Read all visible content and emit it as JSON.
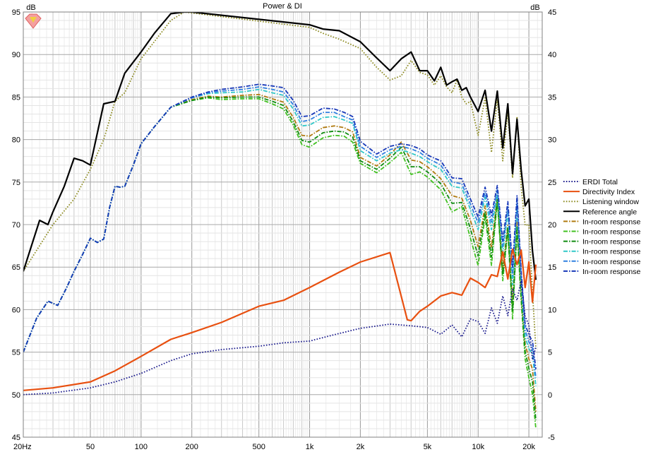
{
  "chart_data": {
    "type": "line",
    "title": "Power & DI",
    "x_scale": "log",
    "xlim": [
      20,
      24000
    ],
    "ylim_left": [
      45,
      95
    ],
    "ylim_right": [
      -5,
      45
    ],
    "left_axis_unit": "dB",
    "right_axis_unit": "dB",
    "grid": true,
    "legend_position": "right",
    "y_ticks_left": [
      95,
      90,
      85,
      80,
      75,
      70,
      65,
      60,
      55,
      50,
      45
    ],
    "y_ticks_right": [
      45,
      40,
      35,
      30,
      25,
      20,
      15,
      10,
      5,
      0,
      -5
    ],
    "x_tick_labels": [
      {
        "value": 20,
        "label": "20Hz"
      },
      {
        "value": 50,
        "label": "50"
      },
      {
        "value": 100,
        "label": "100"
      },
      {
        "value": 200,
        "label": "200"
      },
      {
        "value": 500,
        "label": "500"
      },
      {
        "value": 1000,
        "label": "1k"
      },
      {
        "value": 2000,
        "label": "2k"
      },
      {
        "value": 5000,
        "label": "5k"
      },
      {
        "value": 10000,
        "label": "10k"
      },
      {
        "value": 20000,
        "label": "20k"
      }
    ],
    "series": [
      {
        "name": "ERDI Total",
        "color": "#1a1a8c",
        "dash": "dot",
        "axis": "right",
        "x": [
          20,
          30,
          50,
          70,
          100,
          150,
          200,
          300,
          500,
          700,
          1000,
          1500,
          2000,
          3000,
          4000,
          5000,
          6000,
          7000,
          8000,
          9000,
          10000,
          11000,
          12000,
          13000,
          14000,
          15000,
          16000,
          17000,
          18000,
          19000,
          20000,
          21000,
          22000
        ],
        "y": [
          0,
          0.2,
          0.8,
          1.5,
          2.5,
          4,
          4.8,
          5.3,
          5.7,
          6.1,
          6.3,
          7.2,
          7.8,
          8.3,
          8.1,
          7.9,
          7.1,
          8.2,
          6.8,
          8.9,
          8.6,
          7.2,
          10.2,
          8.4,
          11.6,
          9.3,
          12.4,
          11.1,
          13.4,
          9.2,
          8.2,
          4.1,
          5.6
        ]
      },
      {
        "name": "Directivity Index",
        "color": "#e85010",
        "dash": "solid",
        "axis": "right",
        "x": [
          20,
          30,
          50,
          70,
          100,
          150,
          200,
          300,
          500,
          700,
          1000,
          1500,
          2000,
          3000,
          3800,
          4000,
          4500,
          5000,
          6000,
          7000,
          8000,
          9000,
          10000,
          11000,
          12000,
          13000,
          14000,
          15000,
          16000,
          17000,
          18000,
          19000,
          20000,
          21000,
          22000
        ],
        "y": [
          0.5,
          0.8,
          1.5,
          2.8,
          4.5,
          6.5,
          7.3,
          8.5,
          10.4,
          11.1,
          12.6,
          14.4,
          15.6,
          16.7,
          8.8,
          8.7,
          9.8,
          10.4,
          11.6,
          12.0,
          11.7,
          13.7,
          13.2,
          12.6,
          14.1,
          13.9,
          16.8,
          13.6,
          17.1,
          15.3,
          17.0,
          12.6,
          15.6,
          10.9,
          15.3
        ]
      },
      {
        "name": "Listening window",
        "color": "#8c8a20",
        "dash": "dot",
        "axis": "left",
        "x": [
          20,
          30,
          40,
          50,
          60,
          70,
          80,
          100,
          150,
          180,
          1000,
          1200,
          1500,
          2000,
          2500,
          3000,
          3500,
          4000,
          4500,
          5000,
          5500,
          6000,
          6500,
          7000,
          7500,
          8000,
          8500,
          9000,
          10000,
          11000,
          12000,
          13000,
          14000,
          15000,
          16000,
          17000,
          18000,
          19000,
          20000,
          21000,
          22000
        ],
        "y": [
          64.5,
          70,
          73,
          76.5,
          80,
          84.5,
          85.5,
          89.5,
          94,
          95,
          93.2,
          92.5,
          91.8,
          90.7,
          88.5,
          87,
          87.5,
          89.3,
          87.9,
          87.6,
          86.4,
          87.5,
          86.2,
          85.5,
          87,
          85,
          84.2,
          84.5,
          80.5,
          84.9,
          78.5,
          84.7,
          77.5,
          83.2,
          75.5,
          82.7,
          74.4,
          69.9,
          70,
          62.1,
          55.4
        ]
      },
      {
        "name": "Reference angle",
        "color": "#000000",
        "dash": "solid",
        "axis": "left",
        "x": [
          20,
          25,
          28,
          30,
          35,
          40,
          45,
          50,
          60,
          70,
          80,
          100,
          120,
          150,
          180,
          200,
          1000,
          1200,
          1500,
          2000,
          2500,
          3000,
          3500,
          4000,
          4500,
          5000,
          5500,
          6000,
          6500,
          7000,
          7500,
          8000,
          8500,
          9000,
          10000,
          11000,
          12000,
          13000,
          14000,
          15000,
          16000,
          17000,
          18000,
          19000,
          20000,
          21000,
          22000
        ],
        "y": [
          64.5,
          70.5,
          70,
          71.5,
          74.5,
          77.8,
          77.5,
          77,
          84.2,
          84.5,
          87.8,
          90.3,
          92.5,
          94.8,
          95,
          95,
          93.5,
          93,
          92.8,
          91.5,
          89.6,
          88.1,
          89.5,
          90.3,
          88.1,
          88.1,
          86.9,
          88.5,
          86.4,
          86.8,
          87.1,
          85.8,
          86.1,
          85,
          83.3,
          85.8,
          81,
          85.7,
          79,
          84.2,
          76,
          82.4,
          76.4,
          72.2,
          73,
          66.9,
          63.5
        ]
      },
      {
        "name": "In-room response",
        "color": "#b07a10",
        "dash": "dashdot",
        "axis": "left",
        "x": [
          20,
          24,
          28,
          32,
          36,
          40,
          45,
          50,
          55,
          60,
          65,
          70,
          75,
          80,
          90,
          100,
          120,
          150,
          200,
          250,
          300,
          400,
          500,
          600,
          700,
          800,
          900,
          1000,
          1200,
          1400,
          1600,
          1800,
          2000,
          2500,
          3000,
          3500,
          4000,
          4500,
          5000,
          5500,
          6000,
          7000,
          8000,
          9000,
          10000,
          11000,
          12000,
          13000,
          14000,
          15000,
          16000,
          17000,
          18000,
          19000,
          20000,
          21000,
          22000
        ],
        "y": [
          55,
          59,
          61,
          60.5,
          62.5,
          64.5,
          66.5,
          68.4,
          67.9,
          68.3,
          72,
          74.5,
          74.4,
          74.5,
          77,
          79.5,
          81.5,
          83.8,
          84.7,
          85.1,
          85.0,
          85.2,
          85.3,
          84.8,
          84.4,
          82.6,
          80.5,
          80.4,
          81.4,
          81.6,
          81.4,
          80.9,
          77.9,
          76.9,
          78.2,
          79.7,
          77.6,
          77.4,
          76.8,
          76.1,
          75.4,
          73.4,
          73.1,
          70.5,
          67.4,
          72.2,
          67.3,
          73.2,
          64.8,
          69.9,
          60.6,
          70.3,
          62.3,
          56,
          54.2,
          53,
          48
        ]
      },
      {
        "name": "In-room response",
        "color": "#40c020",
        "dash": "dashdot",
        "axis": "left",
        "x": [
          20,
          24,
          28,
          32,
          36,
          40,
          45,
          50,
          55,
          60,
          65,
          70,
          75,
          80,
          90,
          100,
          120,
          150,
          200,
          250,
          300,
          400,
          500,
          600,
          700,
          800,
          900,
          1000,
          1200,
          1400,
          1600,
          1800,
          2000,
          2500,
          3000,
          3500,
          4000,
          4500,
          5000,
          5500,
          6000,
          7000,
          8000,
          9000,
          10000,
          11000,
          12000,
          13000,
          14000,
          15000,
          16000,
          17000,
          18000,
          19000,
          20000,
          21000,
          22000
        ],
        "y": [
          55,
          59,
          61,
          60.5,
          62.5,
          64.5,
          66.5,
          68.4,
          67.9,
          68.3,
          72,
          74.5,
          74.4,
          74.5,
          77,
          79.5,
          81.5,
          83.8,
          84.6,
          84.9,
          84.7,
          84.8,
          84.8,
          84.2,
          83.6,
          81.7,
          79.4,
          79.1,
          80.2,
          80.5,
          80.4,
          79.7,
          77.2,
          76.1,
          77.3,
          78.5,
          75.9,
          76.2,
          75.6,
          74.8,
          74.1,
          71.5,
          72.1,
          68.4,
          65.2,
          70.9,
          65.2,
          72.8,
          63.4,
          69.4,
          58.9,
          69.4,
          61,
          54.2,
          52,
          50,
          46
        ]
      },
      {
        "name": "In-room response",
        "color": "#108c10",
        "dash": "dashdot",
        "axis": "left",
        "x": [
          20,
          24,
          28,
          32,
          36,
          40,
          45,
          50,
          55,
          60,
          65,
          70,
          75,
          80,
          90,
          100,
          120,
          150,
          200,
          250,
          300,
          400,
          500,
          600,
          700,
          800,
          900,
          1000,
          1200,
          1400,
          1600,
          1800,
          2000,
          2500,
          3000,
          3500,
          4000,
          4500,
          5000,
          5500,
          6000,
          7000,
          8000,
          9000,
          10000,
          11000,
          12000,
          13000,
          14000,
          15000,
          16000,
          17000,
          18000,
          19000,
          20000,
          21000,
          22000
        ],
        "y": [
          55,
          59,
          61,
          60.5,
          62.5,
          64.5,
          66.5,
          68.4,
          67.9,
          68.3,
          72,
          74.5,
          74.4,
          74.5,
          77,
          79.5,
          81.5,
          83.8,
          84.6,
          85.0,
          84.9,
          85.0,
          85.0,
          84.5,
          84.0,
          82.1,
          79.9,
          79.7,
          80.8,
          81.0,
          80.9,
          80.3,
          77.5,
          76.5,
          77.8,
          79.1,
          76.8,
          76.8,
          76.2,
          75.5,
          74.8,
          72.5,
          72.6,
          69.5,
          66.3,
          71.5,
          66.2,
          73.0,
          64.1,
          69.6,
          59.8,
          69.8,
          61.7,
          55.1,
          53.1,
          51.5,
          47
        ]
      },
      {
        "name": "In-room response",
        "color": "#30c8c8",
        "dash": "dashdot",
        "axis": "left",
        "x": [
          20,
          24,
          28,
          32,
          36,
          40,
          45,
          50,
          55,
          60,
          65,
          70,
          75,
          80,
          90,
          100,
          120,
          150,
          200,
          250,
          300,
          400,
          500,
          600,
          700,
          800,
          900,
          1000,
          1200,
          1400,
          1600,
          1800,
          2000,
          2500,
          3000,
          3500,
          4000,
          4500,
          5000,
          5500,
          6000,
          7000,
          8000,
          9000,
          10000,
          11000,
          12000,
          13000,
          14000,
          15000,
          16000,
          17000,
          18000,
          19000,
          20000,
          21000,
          22000
        ],
        "y": [
          55,
          59,
          61,
          60.5,
          62.5,
          64.5,
          66.5,
          68.4,
          67.9,
          68.3,
          72,
          74.5,
          74.4,
          74.5,
          77,
          79.5,
          81.5,
          83.8,
          84.9,
          85.4,
          85.5,
          85.6,
          85.9,
          85.5,
          85.2,
          83.6,
          81.6,
          81.7,
          82.6,
          82.7,
          82.3,
          81.9,
          78.7,
          77.5,
          78.4,
          78.8,
          78.4,
          78.0,
          77.4,
          76.9,
          76.5,
          74.5,
          74.3,
          71.8,
          69.4,
          73.2,
          69.4,
          73.7,
          66.6,
          71.5,
          62.9,
          72.0,
          63.3,
          56.8,
          55.4,
          54.8,
          51
        ]
      },
      {
        "name": "In-room response",
        "color": "#3080e0",
        "dash": "dashdot",
        "axis": "left",
        "x": [
          20,
          24,
          28,
          32,
          36,
          40,
          45,
          50,
          55,
          60,
          65,
          70,
          75,
          80,
          90,
          100,
          120,
          150,
          200,
          250,
          300,
          400,
          500,
          600,
          700,
          800,
          900,
          1000,
          1200,
          1400,
          1600,
          1800,
          2000,
          2500,
          3000,
          3500,
          4000,
          4500,
          5000,
          5500,
          6000,
          7000,
          8000,
          9000,
          10000,
          11000,
          12000,
          13000,
          14000,
          15000,
          16000,
          17000,
          18000,
          19000,
          20000,
          21000,
          22000
        ],
        "y": [
          55,
          59,
          61,
          60.5,
          62.5,
          64.5,
          66.5,
          68.4,
          67.9,
          68.3,
          72,
          74.5,
          74.4,
          74.5,
          77,
          79.5,
          81.5,
          83.8,
          84.9,
          85.5,
          85.7,
          85.9,
          86.2,
          85.9,
          85.6,
          84.1,
          82.1,
          82.3,
          83.2,
          83.2,
          82.7,
          82.3,
          79.2,
          77.9,
          78.8,
          79.2,
          78.9,
          78.5,
          77.8,
          77.4,
          77.0,
          75.0,
          74.8,
          72.4,
          70.2,
          73.8,
          70.3,
          74.1,
          67.4,
          72.1,
          64.0,
          72.8,
          63.9,
          57.6,
          56.2,
          55.5,
          52
        ]
      },
      {
        "name": "In-room response",
        "color": "#1838b8",
        "dash": "dashdot",
        "axis": "left",
        "x": [
          20,
          24,
          28,
          32,
          36,
          40,
          45,
          50,
          55,
          60,
          65,
          70,
          75,
          80,
          90,
          100,
          120,
          150,
          200,
          250,
          300,
          400,
          500,
          600,
          700,
          800,
          900,
          1000,
          1200,
          1400,
          1600,
          1800,
          2000,
          2500,
          3000,
          3500,
          4000,
          4500,
          5000,
          5500,
          6000,
          7000,
          8000,
          9000,
          10000,
          11000,
          12000,
          13000,
          14000,
          15000,
          16000,
          17000,
          18000,
          19000,
          20000,
          21000,
          22000
        ],
        "y": [
          55,
          59,
          61,
          60.5,
          62.5,
          64.5,
          66.5,
          68.4,
          67.9,
          68.3,
          72,
          74.5,
          74.4,
          74.5,
          77,
          79.5,
          81.5,
          83.8,
          85.0,
          85.6,
          85.9,
          86.2,
          86.5,
          86.3,
          86.1,
          84.6,
          82.7,
          82.8,
          83.7,
          83.6,
          83.2,
          82.7,
          79.8,
          78.3,
          79.2,
          79.5,
          79.3,
          78.9,
          78.2,
          77.8,
          77.5,
          75.5,
          75.4,
          73.0,
          70.9,
          74.4,
          71.1,
          74.6,
          68.1,
          72.7,
          65.0,
          73.4,
          64.5,
          58.3,
          57.0,
          56.3,
          53
        ]
      }
    ]
  },
  "legend": {
    "entries": [
      {
        "label": "ERDI Total",
        "color": "#1a1a8c",
        "dash": "dot"
      },
      {
        "label": "Directivity Index",
        "color": "#e85010",
        "dash": "solid"
      },
      {
        "label": "Listening window",
        "color": "#8c8a20",
        "dash": "dot"
      },
      {
        "label": "Reference angle",
        "color": "#000000",
        "dash": "solid"
      },
      {
        "label": "In-room response",
        "color": "#b07a10",
        "dash": "dashdot"
      },
      {
        "label": "In-room response",
        "color": "#40c020",
        "dash": "dashdot"
      },
      {
        "label": "In-room response",
        "color": "#108c10",
        "dash": "dashdot"
      },
      {
        "label": "In-room response",
        "color": "#30c8c8",
        "dash": "dashdot"
      },
      {
        "label": "In-room response",
        "color": "#3080e0",
        "dash": "dashdot"
      },
      {
        "label": "In-room response",
        "color": "#1838b8",
        "dash": "dashdot"
      }
    ]
  },
  "logo": {
    "icon": "diamond-logo-icon",
    "colors": [
      "#f08080",
      "#f0d040"
    ]
  }
}
